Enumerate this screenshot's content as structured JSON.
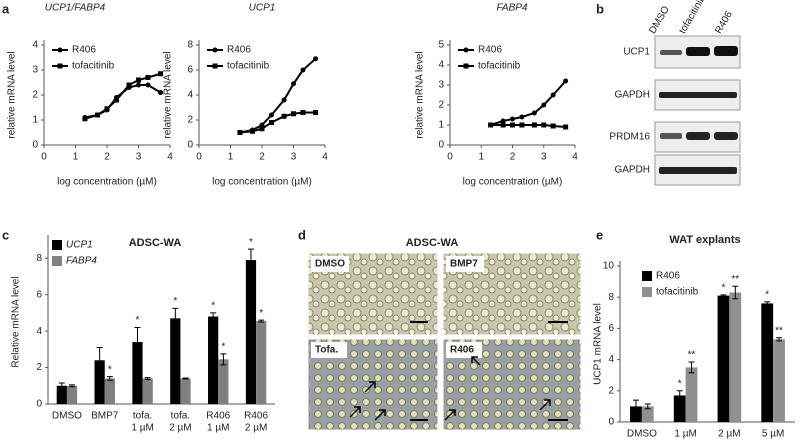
{
  "panel_labels": [
    "a",
    "b",
    "c",
    "d",
    "e"
  ],
  "chart_data": [
    {
      "type": "line",
      "title": "UCP1/FABP4",
      "xlabel": "log concentration (µM)",
      "ylabel": "relative mRNA level",
      "x": [
        1.3,
        1.7,
        2,
        2.3,
        2.7,
        3,
        3.3,
        3.7
      ],
      "xlim": [
        0,
        4
      ],
      "xticks": [
        0,
        1,
        2,
        3,
        4
      ],
      "ylim": [
        0,
        4
      ],
      "yticks": [
        0,
        1,
        2,
        3,
        4
      ],
      "series": [
        {
          "name": "R406",
          "marker": "circle",
          "color": "#000000",
          "values": [
            1.1,
            1.2,
            1.4,
            1.9,
            2.3,
            2.4,
            2.4,
            2.1
          ]
        },
        {
          "name": "tofacitinib",
          "marker": "square",
          "color": "#000000",
          "values": [
            1.05,
            1.2,
            1.45,
            1.8,
            2.4,
            2.6,
            2.7,
            2.85
          ]
        }
      ]
    },
    {
      "type": "line",
      "title": "UCP1",
      "xlabel": "log concentration (µM)",
      "ylabel": "relative mRNA level",
      "x": [
        1.3,
        1.7,
        2,
        2.3,
        2.7,
        3,
        3.3,
        3.7
      ],
      "xlim": [
        0,
        4
      ],
      "xticks": [
        0,
        1,
        2,
        3,
        4
      ],
      "ylim": [
        0,
        8
      ],
      "yticks": [
        0,
        2,
        4,
        6,
        8
      ],
      "series": [
        {
          "name": "R406",
          "marker": "circle",
          "color": "#000000",
          "values": [
            1.0,
            1.2,
            1.6,
            2.4,
            3.6,
            4.9,
            6.0,
            6.9
          ]
        },
        {
          "name": "tofacitinib",
          "marker": "square",
          "color": "#000000",
          "values": [
            1.0,
            1.1,
            1.3,
            1.8,
            2.3,
            2.5,
            2.6,
            2.6
          ]
        }
      ]
    },
    {
      "type": "line",
      "title": "FABP4",
      "xlabel": "log concentration (µM)",
      "ylabel": "relative mRNA level",
      "x": [
        1.3,
        1.7,
        2,
        2.3,
        2.7,
        3,
        3.3,
        3.7
      ],
      "xlim": [
        0,
        4
      ],
      "xticks": [
        0,
        1,
        2,
        3,
        4
      ],
      "ylim": [
        0,
        5
      ],
      "yticks": [
        0,
        1,
        2,
        3,
        4,
        5
      ],
      "series": [
        {
          "name": "R406",
          "marker": "circle",
          "color": "#000000",
          "values": [
            1.0,
            1.2,
            1.3,
            1.4,
            1.6,
            2.0,
            2.5,
            3.2
          ]
        },
        {
          "name": "tofacitinib",
          "marker": "square",
          "color": "#000000",
          "values": [
            1.0,
            1.0,
            1.0,
            1.0,
            1.0,
            1.0,
            0.95,
            0.9
          ]
        }
      ]
    },
    {
      "type": "bar",
      "title": "ADSC-WA",
      "ylabel": "Relative  mRNA level",
      "categories": [
        [
          "DMSO"
        ],
        [
          "BMP7"
        ],
        [
          "tofa.",
          "1 µM"
        ],
        [
          "tofa.",
          "2 µM"
        ],
        [
          "R406",
          "1 µM"
        ],
        [
          "R406",
          "2 µM"
        ]
      ],
      "ylim": [
        0,
        9
      ],
      "yticks": [
        0,
        2,
        4,
        6,
        8
      ],
      "series": [
        {
          "name": "UCP1",
          "color": "#000000",
          "values": [
            1.0,
            2.4,
            3.4,
            4.7,
            4.8,
            7.9
          ],
          "errors": [
            0.15,
            0.7,
            0.8,
            0.55,
            0.2,
            0.6
          ],
          "stars": [
            null,
            null,
            "*",
            "*",
            "*",
            "*"
          ]
        },
        {
          "name": "FABP4",
          "color": "#808080",
          "values": [
            1.0,
            1.4,
            1.4,
            1.4,
            2.45,
            4.55
          ],
          "errors": [
            0.05,
            0.1,
            0.05,
            0.03,
            0.3,
            0.05
          ],
          "stars": [
            null,
            "*",
            null,
            null,
            "*",
            "*"
          ]
        }
      ]
    },
    {
      "type": "bar",
      "title": "WAT explants",
      "ylabel": "UCP1 mRNA level",
      "categories": [
        [
          "DMSO"
        ],
        [
          "1 µM"
        ],
        [
          "2 µM"
        ],
        [
          "5 µM"
        ]
      ],
      "ylim": [
        0,
        10
      ],
      "yticks": [
        0,
        2,
        4,
        6,
        8,
        10
      ],
      "series": [
        {
          "name": "R406",
          "color": "#000000",
          "values": [
            1.0,
            1.7,
            8.1,
            7.6
          ],
          "errors": [
            0.4,
            0.3,
            0.05,
            0.1
          ],
          "stars": [
            null,
            "*",
            "*",
            "*"
          ]
        },
        {
          "name": "tofacitinib",
          "color": "#909090",
          "values": [
            1.0,
            3.5,
            8.3,
            5.3
          ],
          "errors": [
            0.15,
            0.35,
            0.4,
            0.1
          ],
          "stars": [
            null,
            "**",
            "**",
            "**"
          ]
        }
      ]
    }
  ],
  "blot": {
    "columns": [
      "DMSO",
      "tofacitinib",
      "R406"
    ],
    "rows": [
      "UCP1",
      "GAPDH",
      "PRDM16",
      "GAPDH"
    ]
  },
  "micrographs": {
    "title": "ADSC-WA",
    "labels": [
      "DMSO",
      "BMP7",
      "Tofa.",
      "R406"
    ]
  }
}
